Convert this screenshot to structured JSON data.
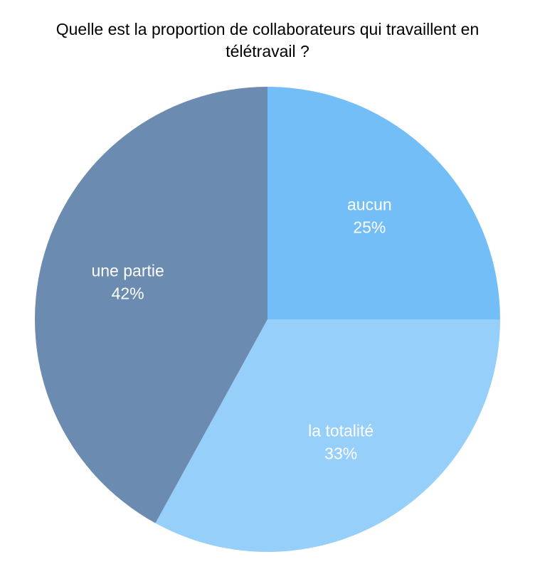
{
  "chart_data": {
    "type": "pie",
    "title": "Quelle est la proportion de collaborateurs qui travaillent en télétravail ?",
    "categories": [
      "aucun",
      "la totalité",
      "une partie"
    ],
    "values": [
      25,
      33,
      42
    ],
    "value_labels": [
      "25%",
      "33%",
      "42%"
    ],
    "colors": [
      "#74bef8",
      "#96cffa",
      "#6b8bb0"
    ]
  }
}
